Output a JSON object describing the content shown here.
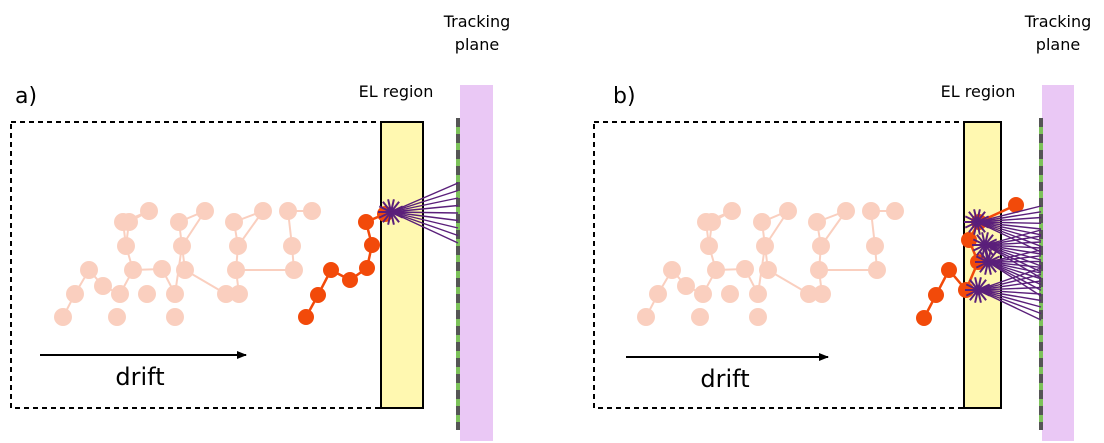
{
  "panels": [
    {
      "id": "a",
      "letter": "a)",
      "region_label": "EL region",
      "plane_label_line1": "Tracking",
      "plane_label_line2": "plane",
      "drift_label": "drift"
    },
    {
      "id": "b",
      "letter": "b)",
      "region_label": "EL region",
      "plane_label_line1": "Tracking",
      "plane_label_line2": "plane",
      "drift_label": "drift"
    }
  ],
  "colors": {
    "el_region_fill": "#fff8b0",
    "tracking_plane_fill": "#eac8f5",
    "sensor_green": "#7cc25a",
    "sensor_dark": "#555555",
    "ghost_electron": "#f6a98c",
    "active_electron": "#f24a0a",
    "light_burst": "#5a1f7a"
  }
}
